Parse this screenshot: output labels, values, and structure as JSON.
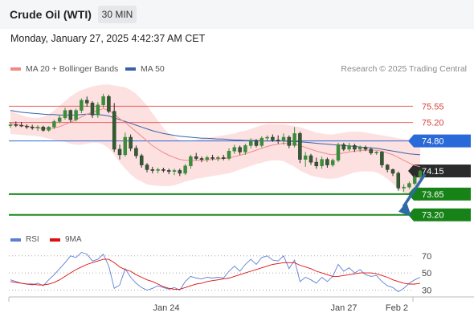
{
  "header": {
    "title": "Crude Oil (WTI)",
    "timeframe": "30 MIN",
    "datetime": "Monday, January 27, 2025 4:42:37 AM CET",
    "copyright": "Research © 2025 Trading Central"
  },
  "legend": [
    {
      "label": "MA 20 + Bollinger Bands",
      "color": "#f08a8a"
    },
    {
      "label": "MA 50",
      "color": "#3a62a8"
    }
  ],
  "rsi_legend": [
    {
      "label": "RSI",
      "color": "#5b7fd6"
    },
    {
      "label": "9MA",
      "color": "#e01010"
    }
  ],
  "colors": {
    "up": "#3c8c3c",
    "down": "#2b2b2b",
    "band": "#fde0e0",
    "resistance": "#e86060",
    "pivot": "#2a6ad8",
    "support": "#1a8a1a",
    "last": "#2b2b2b",
    "arrow": "#2f6aa6"
  },
  "chart_data": [
    {
      "type": "candlestick",
      "title": "Crude Oil (WTI)",
      "timeframe": "30 MIN",
      "x_tick_labels": [
        "Jan 24",
        "Jan 27",
        "Feb 2"
      ],
      "y_range": [
        72.9,
        76.2
      ],
      "candles": [
        {
          "o": 75.13,
          "h": 75.2,
          "l": 75.08,
          "c": 75.15
        },
        {
          "o": 75.15,
          "h": 75.22,
          "l": 75.1,
          "c": 75.14
        },
        {
          "o": 75.14,
          "h": 75.21,
          "l": 75.1,
          "c": 75.12
        },
        {
          "o": 75.12,
          "h": 75.16,
          "l": 75.06,
          "c": 75.1
        },
        {
          "o": 75.1,
          "h": 75.15,
          "l": 75.04,
          "c": 75.08
        },
        {
          "o": 75.08,
          "h": 75.14,
          "l": 75.02,
          "c": 75.1
        },
        {
          "o": 75.1,
          "h": 75.13,
          "l": 75.0,
          "c": 75.03
        },
        {
          "o": 75.03,
          "h": 75.12,
          "l": 75.0,
          "c": 75.1
        },
        {
          "o": 75.1,
          "h": 75.26,
          "l": 75.06,
          "c": 75.22
        },
        {
          "o": 75.22,
          "h": 75.36,
          "l": 75.18,
          "c": 75.3
        },
        {
          "o": 75.3,
          "h": 75.52,
          "l": 75.26,
          "c": 75.46
        },
        {
          "o": 75.46,
          "h": 75.48,
          "l": 75.2,
          "c": 75.26
        },
        {
          "o": 75.26,
          "h": 75.5,
          "l": 75.22,
          "c": 75.46
        },
        {
          "o": 75.46,
          "h": 75.72,
          "l": 75.4,
          "c": 75.68
        },
        {
          "o": 75.68,
          "h": 75.76,
          "l": 75.54,
          "c": 75.62
        },
        {
          "o": 75.62,
          "h": 75.66,
          "l": 75.3,
          "c": 75.36
        },
        {
          "o": 75.36,
          "h": 75.64,
          "l": 75.3,
          "c": 75.58
        },
        {
          "o": 75.58,
          "h": 75.82,
          "l": 75.52,
          "c": 75.76
        },
        {
          "o": 75.76,
          "h": 75.8,
          "l": 75.4,
          "c": 75.44
        },
        {
          "o": 75.44,
          "h": 75.62,
          "l": 74.56,
          "c": 74.62
        },
        {
          "o": 74.62,
          "h": 74.72,
          "l": 74.4,
          "c": 74.5
        },
        {
          "o": 74.5,
          "h": 74.98,
          "l": 74.46,
          "c": 74.88
        },
        {
          "o": 74.88,
          "h": 74.94,
          "l": 74.58,
          "c": 74.64
        },
        {
          "o": 74.64,
          "h": 74.7,
          "l": 74.42,
          "c": 74.48
        },
        {
          "o": 74.48,
          "h": 74.52,
          "l": 74.22,
          "c": 74.28
        },
        {
          "o": 74.28,
          "h": 74.32,
          "l": 74.12,
          "c": 74.18
        },
        {
          "o": 74.18,
          "h": 74.24,
          "l": 74.1,
          "c": 74.16
        },
        {
          "o": 74.16,
          "h": 74.22,
          "l": 74.1,
          "c": 74.18
        },
        {
          "o": 74.18,
          "h": 74.22,
          "l": 74.12,
          "c": 74.16
        },
        {
          "o": 74.16,
          "h": 74.2,
          "l": 74.08,
          "c": 74.14
        },
        {
          "o": 74.14,
          "h": 74.2,
          "l": 74.06,
          "c": 74.16
        },
        {
          "o": 74.16,
          "h": 74.2,
          "l": 74.04,
          "c": 74.1
        },
        {
          "o": 74.1,
          "h": 74.3,
          "l": 74.06,
          "c": 74.26
        },
        {
          "o": 74.26,
          "h": 74.5,
          "l": 74.2,
          "c": 74.46
        },
        {
          "o": 74.46,
          "h": 74.54,
          "l": 74.38,
          "c": 74.42
        },
        {
          "o": 74.42,
          "h": 74.46,
          "l": 74.34,
          "c": 74.4
        },
        {
          "o": 74.4,
          "h": 74.48,
          "l": 74.34,
          "c": 74.44
        },
        {
          "o": 74.44,
          "h": 74.5,
          "l": 74.38,
          "c": 74.42
        },
        {
          "o": 74.42,
          "h": 74.48,
          "l": 74.36,
          "c": 74.44
        },
        {
          "o": 74.44,
          "h": 74.5,
          "l": 74.38,
          "c": 74.42
        },
        {
          "o": 74.42,
          "h": 74.64,
          "l": 74.38,
          "c": 74.58
        },
        {
          "o": 74.58,
          "h": 74.72,
          "l": 74.52,
          "c": 74.66
        },
        {
          "o": 74.66,
          "h": 74.7,
          "l": 74.5,
          "c": 74.56
        },
        {
          "o": 74.56,
          "h": 74.74,
          "l": 74.5,
          "c": 74.7
        },
        {
          "o": 74.7,
          "h": 74.86,
          "l": 74.64,
          "c": 74.8
        },
        {
          "o": 74.8,
          "h": 74.84,
          "l": 74.66,
          "c": 74.7
        },
        {
          "o": 74.7,
          "h": 74.9,
          "l": 74.66,
          "c": 74.86
        },
        {
          "o": 74.86,
          "h": 74.92,
          "l": 74.8,
          "c": 74.88
        },
        {
          "o": 74.88,
          "h": 74.94,
          "l": 74.78,
          "c": 74.82
        },
        {
          "o": 74.82,
          "h": 74.92,
          "l": 74.74,
          "c": 74.8
        },
        {
          "o": 74.8,
          "h": 74.96,
          "l": 74.72,
          "c": 74.88
        },
        {
          "o": 74.88,
          "h": 74.92,
          "l": 74.64,
          "c": 74.7
        },
        {
          "o": 74.7,
          "h": 75.1,
          "l": 74.66,
          "c": 74.96
        },
        {
          "o": 74.96,
          "h": 75.0,
          "l": 74.32,
          "c": 74.4
        },
        {
          "o": 74.4,
          "h": 74.56,
          "l": 74.24,
          "c": 74.48
        },
        {
          "o": 74.48,
          "h": 74.52,
          "l": 74.28,
          "c": 74.34
        },
        {
          "o": 74.34,
          "h": 74.44,
          "l": 74.2,
          "c": 74.26
        },
        {
          "o": 74.26,
          "h": 74.46,
          "l": 74.2,
          "c": 74.4
        },
        {
          "o": 74.4,
          "h": 74.44,
          "l": 74.22,
          "c": 74.28
        },
        {
          "o": 74.28,
          "h": 74.42,
          "l": 74.24,
          "c": 74.38
        },
        {
          "o": 74.38,
          "h": 74.76,
          "l": 74.34,
          "c": 74.72
        },
        {
          "o": 74.72,
          "h": 74.76,
          "l": 74.58,
          "c": 74.62
        },
        {
          "o": 74.62,
          "h": 74.76,
          "l": 74.58,
          "c": 74.7
        },
        {
          "o": 74.7,
          "h": 74.74,
          "l": 74.56,
          "c": 74.62
        },
        {
          "o": 74.62,
          "h": 74.7,
          "l": 74.56,
          "c": 74.66
        },
        {
          "o": 74.66,
          "h": 74.7,
          "l": 74.58,
          "c": 74.62
        },
        {
          "o": 74.62,
          "h": 74.66,
          "l": 74.5,
          "c": 74.54
        },
        {
          "o": 74.54,
          "h": 74.58,
          "l": 74.5,
          "c": 74.56
        },
        {
          "o": 74.56,
          "h": 74.58,
          "l": 74.22,
          "c": 74.28
        },
        {
          "o": 74.28,
          "h": 74.3,
          "l": 74.12,
          "c": 74.18
        },
        {
          "o": 74.18,
          "h": 74.2,
          "l": 74.04,
          "c": 74.1
        },
        {
          "o": 74.1,
          "h": 74.14,
          "l": 73.72,
          "c": 73.78
        },
        {
          "o": 73.78,
          "h": 73.86,
          "l": 73.7,
          "c": 73.8
        },
        {
          "o": 73.8,
          "h": 73.92,
          "l": 73.76,
          "c": 73.88
        },
        {
          "o": 73.88,
          "h": 74.06,
          "l": 73.84,
          "c": 74.02
        },
        {
          "o": 74.02,
          "h": 74.18,
          "l": 73.98,
          "c": 74.15
        }
      ],
      "ma20": [
        75.18,
        75.16,
        75.14,
        75.12,
        75.1,
        75.08,
        75.07,
        75.06,
        75.08,
        75.11,
        75.16,
        75.2,
        75.26,
        75.32,
        75.38,
        75.42,
        75.46,
        75.5,
        75.46,
        75.38,
        75.28,
        75.2,
        75.1,
        75.0,
        74.9,
        74.8,
        74.7,
        74.62,
        74.55,
        74.49,
        74.44,
        74.4,
        74.38,
        74.38,
        74.38,
        74.38,
        74.39,
        74.4,
        74.41,
        74.42,
        74.43,
        74.46,
        74.49,
        74.52,
        74.56,
        74.6,
        74.64,
        74.68,
        74.71,
        74.73,
        74.75,
        74.74,
        74.73,
        74.7,
        74.66,
        74.62,
        74.58,
        74.55,
        74.52,
        74.5,
        74.52,
        74.54,
        74.56,
        74.58,
        74.59,
        74.6,
        74.6,
        74.6,
        74.58,
        74.54,
        74.5,
        74.44,
        74.38,
        74.32,
        74.27,
        74.24
      ],
      "upper_band": [
        75.45,
        75.4,
        75.36,
        75.32,
        75.3,
        75.3,
        75.32,
        75.38,
        75.46,
        75.56,
        75.66,
        75.76,
        75.84,
        75.9,
        75.94,
        75.98,
        76.0,
        76.02,
        76.02,
        76.0,
        75.98,
        75.96,
        75.9,
        75.82,
        75.7,
        75.56,
        75.4,
        75.24,
        75.08,
        74.96,
        74.88,
        74.82,
        74.8,
        74.8,
        74.82,
        74.84,
        74.86,
        74.88,
        74.9,
        74.92,
        74.94,
        74.96,
        75.0,
        75.02,
        75.06,
        75.1,
        75.14,
        75.16,
        75.16,
        75.16,
        75.16,
        75.14,
        75.12,
        75.1,
        75.06,
        75.02,
        74.98,
        74.96,
        74.94,
        74.94,
        74.96,
        74.98,
        75.0,
        75.0,
        75.0,
        74.98,
        74.96,
        74.94,
        74.92,
        74.9,
        74.88,
        74.86,
        74.84,
        74.82,
        74.8,
        74.8
      ],
      "lower_band": [
        74.95,
        74.94,
        74.93,
        74.92,
        74.91,
        74.9,
        74.88,
        74.85,
        74.82,
        74.8,
        74.78,
        74.74,
        74.72,
        74.72,
        74.74,
        74.76,
        74.76,
        74.72,
        74.64,
        74.5,
        74.34,
        74.2,
        74.08,
        73.98,
        73.92,
        73.86,
        73.84,
        73.83,
        73.82,
        73.82,
        73.84,
        73.88,
        73.92,
        73.95,
        73.98,
        74.0,
        74.02,
        74.04,
        74.06,
        74.08,
        74.1,
        74.14,
        74.18,
        74.22,
        74.26,
        74.3,
        74.33,
        74.36,
        74.38,
        74.38,
        74.36,
        74.3,
        74.24,
        74.16,
        74.1,
        74.05,
        74.02,
        74.0,
        73.98,
        73.98,
        74.0,
        74.04,
        74.08,
        74.12,
        74.14,
        74.14,
        74.14,
        74.12,
        74.06,
        73.98,
        73.88,
        73.76,
        73.66,
        73.58,
        73.52,
        73.48
      ],
      "ma50": [
        75.46,
        75.44,
        75.42,
        75.41,
        75.4,
        75.39,
        75.38,
        75.37,
        75.37,
        75.36,
        75.36,
        75.36,
        75.36,
        75.37,
        75.38,
        75.38,
        75.37,
        75.36,
        75.34,
        75.3,
        75.26,
        75.22,
        75.18,
        75.14,
        75.1,
        75.06,
        75.02,
        74.99,
        74.96,
        74.94,
        74.92,
        74.9,
        74.89,
        74.88,
        74.87,
        74.86,
        74.86,
        74.85,
        74.84,
        74.84,
        74.83,
        74.82,
        74.82,
        74.81,
        74.81,
        74.81,
        74.8,
        74.8,
        74.8,
        74.8,
        74.8,
        74.79,
        74.79,
        74.78,
        74.77,
        74.76,
        74.75,
        74.74,
        74.73,
        74.72,
        74.71,
        74.7,
        74.69,
        74.68,
        74.67,
        74.66,
        74.65,
        74.64,
        74.62,
        74.6,
        74.58,
        74.56,
        74.54,
        74.52,
        74.51,
        74.5
      ],
      "levels": [
        {
          "value": 75.55,
          "label": "75.55",
          "kind": "resistance"
        },
        {
          "value": 75.2,
          "label": "75.20",
          "kind": "resistance"
        },
        {
          "value": 74.8,
          "label": "74.80",
          "kind": "pivot"
        },
        {
          "value": 74.15,
          "label": "74.15",
          "kind": "last"
        },
        {
          "value": 73.65,
          "label": "73.65",
          "kind": "support"
        },
        {
          "value": 73.2,
          "label": "73.20",
          "kind": "support"
        }
      ],
      "forecast_arrow": {
        "from": 74.15,
        "to": 73.2
      }
    },
    {
      "type": "line",
      "y_range": [
        22,
        82
      ],
      "y_ticks": [
        70,
        50,
        30
      ],
      "series": [
        {
          "name": "RSI",
          "values": [
            42,
            40,
            38,
            37,
            36,
            38,
            35,
            42,
            48,
            55,
            62,
            70,
            68,
            74,
            72,
            64,
            66,
            72,
            58,
            32,
            36,
            55,
            45,
            38,
            33,
            30,
            32,
            35,
            33,
            31,
            33,
            30,
            40,
            46,
            44,
            43,
            45,
            44,
            45,
            44,
            52,
            58,
            52,
            60,
            66,
            60,
            68,
            70,
            65,
            64,
            70,
            55,
            65,
            40,
            45,
            42,
            38,
            45,
            40,
            46,
            60,
            52,
            56,
            50,
            54,
            48,
            46,
            47,
            40,
            35,
            33,
            28,
            32,
            38,
            42,
            45
          ]
        },
        {
          "name": "9MA",
          "values": [
            40,
            39,
            38,
            37,
            37,
            36,
            36,
            37,
            39,
            42,
            46,
            50,
            54,
            57,
            60,
            62,
            64,
            66,
            66,
            62,
            57,
            54,
            52,
            48,
            45,
            42,
            40,
            37,
            34,
            32,
            31,
            31,
            33,
            35,
            37,
            38,
            40,
            41,
            42,
            43,
            44,
            46,
            48,
            50,
            52,
            54,
            56,
            58,
            60,
            61,
            62,
            62,
            62,
            59,
            57,
            55,
            52,
            50,
            48,
            46,
            46,
            47,
            48,
            49,
            50,
            50,
            50,
            49,
            47,
            45,
            42,
            40,
            38,
            37,
            37,
            38
          ]
        }
      ]
    }
  ]
}
